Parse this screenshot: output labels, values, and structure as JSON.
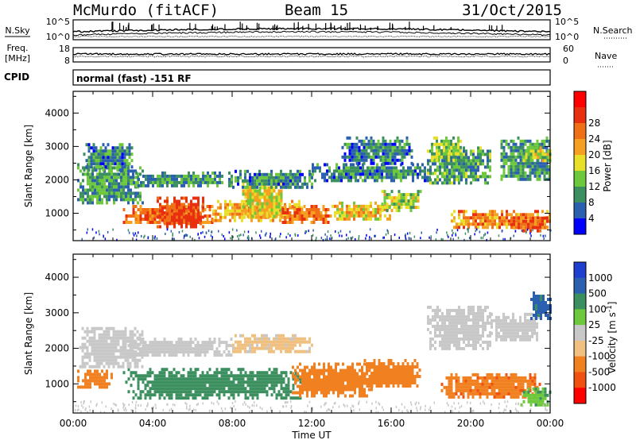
{
  "header": {
    "station": "McMurdo (fitACF)",
    "beam": "Beam 15",
    "date": "31/Oct/2015",
    "mode": "normal (fast) -151 RF"
  },
  "side_labels": {
    "nsky": "N.Sky",
    "nsearch": "N.Search",
    "freq_line1": "Freq.",
    "freq_line2": "[MHz]",
    "nave": "Nave",
    "cpid": "CPID"
  },
  "strip_ticks": {
    "nsky_left": [
      "10^5",
      "10^0"
    ],
    "nsky_right": [
      "10^5",
      "10^0"
    ],
    "freq_left": [
      "18",
      "8"
    ],
    "nave_right": [
      "60",
      "0"
    ]
  },
  "colors": {
    "power": [
      "#0000ff",
      "#2b5fb0",
      "#3c8f5f",
      "#6ec83c",
      "#e8e028",
      "#f5a020",
      "#f07018",
      "#e83010",
      "#ff0000"
    ],
    "velocity": [
      "#ff0000",
      "#f05010",
      "#f08020",
      "#f0c080",
      "#c8c8c8",
      "#6ec83c",
      "#3c8f5f",
      "#2b5fb0",
      "#1f3fd0"
    ]
  },
  "chart_data": [
    {
      "type": "heatmap",
      "name": "power",
      "xlabel": "Time UT",
      "ylabel": "Slant Range [km]",
      "xlim": [
        0,
        24
      ],
      "ylim": [
        180,
        4650
      ],
      "xticks": [
        "00:00",
        "04:00",
        "08:00",
        "12:00",
        "16:00",
        "20:00",
        "00:00"
      ],
      "yticks": [
        1000,
        2000,
        3000,
        4000
      ],
      "colorbar": {
        "label": "Power [dB]",
        "ticks": [
          4,
          8,
          12,
          16,
          20,
          24,
          28
        ],
        "range": [
          0,
          32
        ]
      },
      "regions": [
        {
          "t": [
            2.5,
            7.0
          ],
          "r": [
            700,
            1250
          ],
          "v": 26
        },
        {
          "t": [
            4.2,
            6.6
          ],
          "r": [
            600,
            1500
          ],
          "v": 30
        },
        {
          "t": [
            7.0,
            11.5
          ],
          "r": [
            800,
            1400
          ],
          "v": 22
        },
        {
          "t": [
            8.5,
            10.5
          ],
          "r": [
            900,
            2000
          ],
          "v": 18
        },
        {
          "t": [
            10.5,
            13.0
          ],
          "r": [
            750,
            1250
          ],
          "v": 26
        },
        {
          "t": [
            13.0,
            16.0
          ],
          "r": [
            800,
            1350
          ],
          "v": 20
        },
        {
          "t": [
            15.5,
            17.5
          ],
          "r": [
            1100,
            1700
          ],
          "v": 16
        },
        {
          "t": [
            0.2,
            3.5
          ],
          "r": [
            1300,
            2500
          ],
          "v": 10
        },
        {
          "t": [
            0.5,
            3.0
          ],
          "r": [
            2300,
            3100
          ],
          "v": 9
        },
        {
          "t": [
            3.0,
            8.0
          ],
          "r": [
            1850,
            2250
          ],
          "v": 10
        },
        {
          "t": [
            8.0,
            12.0
          ],
          "r": [
            1800,
            2300
          ],
          "v": 9
        },
        {
          "t": [
            12.0,
            18.0
          ],
          "r": [
            2000,
            2500
          ],
          "v": 9
        },
        {
          "t": [
            13.5,
            17.0
          ],
          "r": [
            2500,
            3300
          ],
          "v": 8
        },
        {
          "t": [
            17.8,
            21.0
          ],
          "r": [
            1900,
            3000
          ],
          "v": 11
        },
        {
          "t": [
            18.0,
            19.5
          ],
          "r": [
            2600,
            3300
          ],
          "v": 14
        },
        {
          "t": [
            19.0,
            24.0
          ],
          "r": [
            600,
            1100
          ],
          "v": 24
        },
        {
          "t": [
            22.0,
            24.0
          ],
          "r": [
            500,
            900
          ],
          "v": 28
        },
        {
          "t": [
            21.5,
            24.0
          ],
          "r": [
            2000,
            3300
          ],
          "v": 10
        },
        {
          "t": [
            22.5,
            24.0
          ],
          "r": [
            2600,
            3000
          ],
          "v": 16
        }
      ]
    },
    {
      "type": "heatmap",
      "name": "velocity",
      "xlabel": "Time UT",
      "ylabel": "Slant Range [km]",
      "xlim": [
        0,
        24
      ],
      "ylim": [
        180,
        4650
      ],
      "xticks": [
        "00:00",
        "04:00",
        "08:00",
        "12:00",
        "16:00",
        "20:00",
        "00:00"
      ],
      "yticks": [
        1000,
        2000,
        3000,
        4000
      ],
      "colorbar": {
        "label": "Velocity [m s^-1]",
        "ticks": [
          "-1000",
          "-500",
          "-100",
          "-25",
          "25",
          "100",
          "500",
          "1000"
        ]
      },
      "regions": [
        {
          "t": [
            2.5,
            11.5
          ],
          "r": [
            600,
            1450
          ],
          "v": 300
        },
        {
          "t": [
            11.0,
            15.0
          ],
          "r": [
            700,
            1600
          ],
          "v": -300
        },
        {
          "t": [
            14.5,
            17.5
          ],
          "r": [
            900,
            1700
          ],
          "v": -200
        },
        {
          "t": [
            18.5,
            23.5
          ],
          "r": [
            600,
            1300
          ],
          "v": -400
        },
        {
          "t": [
            0.2,
            2.0
          ],
          "r": [
            900,
            1400
          ],
          "v": -200
        },
        {
          "t": [
            0.3,
            3.5
          ],
          "r": [
            1500,
            2600
          ],
          "v": 0
        },
        {
          "t": [
            2.5,
            8.0
          ],
          "r": [
            1800,
            2300
          ],
          "v": 0
        },
        {
          "t": [
            17.8,
            21.0
          ],
          "r": [
            2000,
            3200
          ],
          "v": 0
        },
        {
          "t": [
            21.0,
            23.5
          ],
          "r": [
            2200,
            3000
          ],
          "v": 0
        },
        {
          "t": [
            8.0,
            12.0
          ],
          "r": [
            1900,
            2400
          ],
          "v": -50
        },
        {
          "t": [
            22.5,
            24.0
          ],
          "r": [
            400,
            900
          ],
          "v": 80
        },
        {
          "t": [
            23.0,
            24.0
          ],
          "r": [
            2800,
            3600
          ],
          "v": 700
        }
      ]
    }
  ]
}
